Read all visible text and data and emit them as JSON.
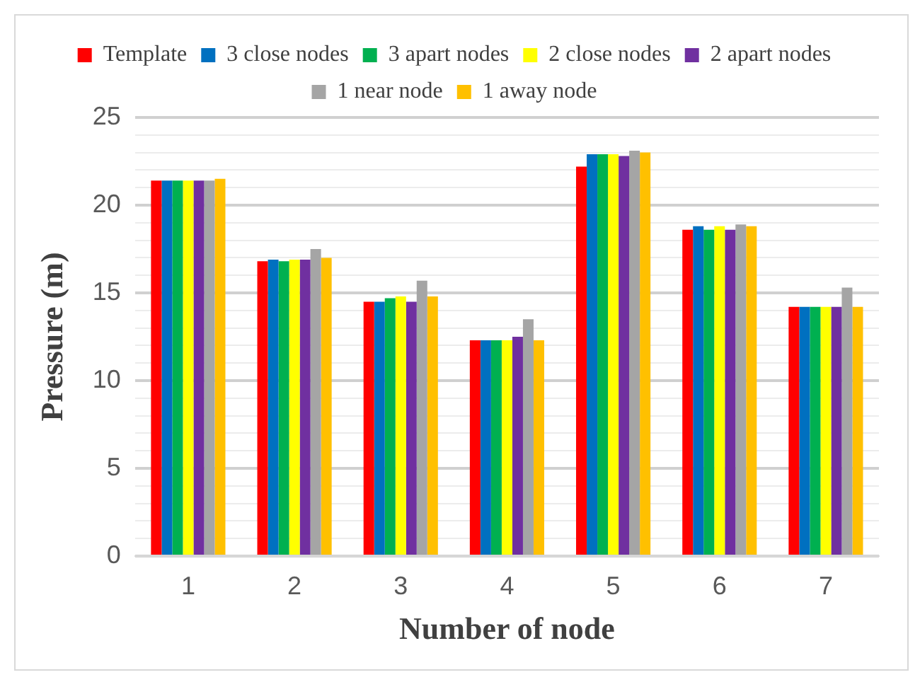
{
  "chart_data": {
    "type": "bar",
    "xlabel": "Number of node",
    "ylabel": "Pressure (m)",
    "categories": [
      "1",
      "2",
      "3",
      "4",
      "5",
      "6",
      "7"
    ],
    "series": [
      {
        "name": "Template",
        "color": "#ff0000",
        "values": [
          21.4,
          16.8,
          14.5,
          12.3,
          22.2,
          18.6,
          14.2
        ]
      },
      {
        "name": "3 close nodes",
        "color": "#0070c0",
        "values": [
          21.4,
          16.9,
          14.5,
          12.3,
          22.9,
          18.8,
          14.2
        ]
      },
      {
        "name": "3 apart nodes",
        "color": "#00b050",
        "values": [
          21.4,
          16.8,
          14.7,
          12.3,
          22.9,
          18.6,
          14.2
        ]
      },
      {
        "name": "2 close nodes",
        "color": "#ffff00",
        "values": [
          21.4,
          16.9,
          14.8,
          12.3,
          22.9,
          18.8,
          14.2
        ]
      },
      {
        "name": "2 apart nodes",
        "color": "#7030a0",
        "values": [
          21.4,
          16.9,
          14.5,
          12.5,
          22.8,
          18.6,
          14.2
        ]
      },
      {
        "name": "1 near node",
        "color": "#a5a5a5",
        "values": [
          21.4,
          17.5,
          15.7,
          13.5,
          23.1,
          18.9,
          15.3
        ]
      },
      {
        "name": "1 away node",
        "color": "#ffc000",
        "values": [
          21.5,
          17.0,
          14.8,
          12.3,
          23.0,
          18.8,
          14.2
        ]
      }
    ],
    "ylim": [
      0,
      25
    ],
    "yticks": [
      0,
      {
        "value": 1,
        "label": null
      },
      {
        "value": 2,
        "label": null
      },
      {
        "value": 3,
        "label": null
      },
      {
        "value": 4,
        "label": null
      },
      5,
      {
        "value": 6,
        "label": null
      },
      {
        "value": 7,
        "label": null
      },
      {
        "value": 8,
        "label": null
      },
      {
        "value": 9,
        "label": null
      },
      10,
      {
        "value": 11,
        "label": null
      },
      {
        "value": 12,
        "label": null
      },
      {
        "value": 13,
        "label": null
      },
      {
        "value": 14,
        "label": null
      },
      15,
      {
        "value": 16,
        "label": null
      },
      {
        "value": 17,
        "label": null
      },
      {
        "value": 18,
        "label": null
      },
      {
        "value": 19,
        "label": null
      },
      20,
      {
        "value": 21,
        "label": null
      },
      {
        "value": 22,
        "label": null
      },
      {
        "value": 23,
        "label": null
      },
      {
        "value": 24,
        "label": null
      },
      25
    ],
    "grid": "y",
    "legend": "top"
  }
}
